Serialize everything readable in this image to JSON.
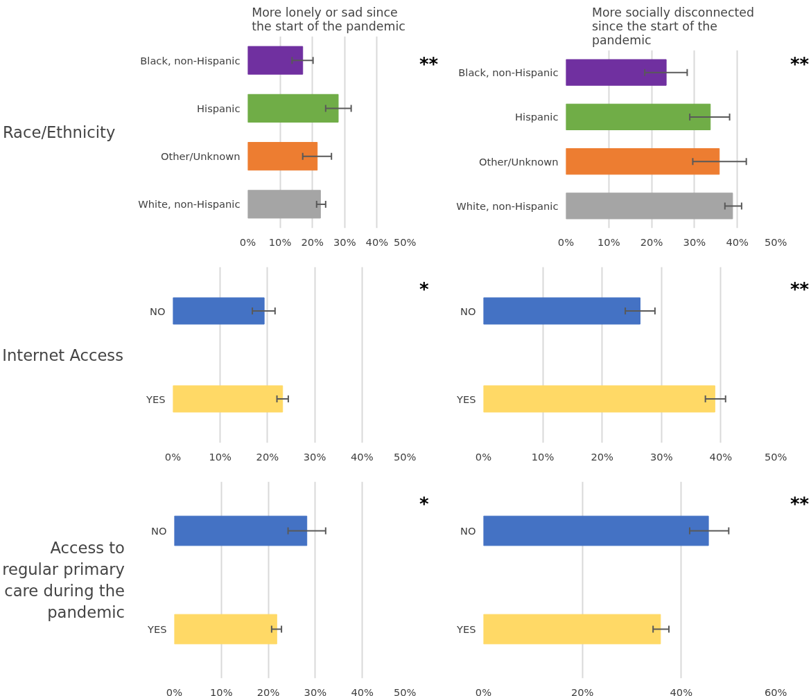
{
  "chart_data": [
    {
      "type": "bar",
      "orientation": "horizontal",
      "title": "More lonely or sad since the start of the pandemic",
      "ylabel": "Race/Ethnicity",
      "categories": [
        "Black, non-Hispanic",
        "Hispanic",
        "Other/Unknown",
        "White, non-Hispanic"
      ],
      "values": [
        17.0,
        28.0,
        21.5,
        22.5
      ],
      "colors": [
        "#7030a0",
        "#70ad47",
        "#ed7d31",
        "#a5a5a5"
      ],
      "errors": [
        [
          13.7,
          20.2
        ],
        [
          24.1,
          32.0
        ],
        [
          17.0,
          25.9
        ],
        [
          21.3,
          24.1
        ]
      ],
      "xlim": [
        0,
        50
      ],
      "xticks": [
        {
          "value": 0,
          "label": "0%"
        },
        {
          "value": 10,
          "label": "10%"
        },
        {
          "value": 20,
          "label": "20%"
        },
        {
          "value": 30,
          "label": "30%"
        },
        {
          "value": 40,
          "label": "40%"
        },
        {
          "value": 50,
          "label": "50%"
        }
      ],
      "grid": "x",
      "annotations": [
        "**"
      ]
    },
    {
      "type": "bar",
      "orientation": "horizontal",
      "title": "More socially disconnected since the start of the pandemic",
      "categories": [
        "Black, non-Hispanic",
        "Hispanic",
        "Other/Unknown",
        "White, non-Hispanic"
      ],
      "values": [
        23.4,
        33.7,
        35.8,
        38.9
      ],
      "colors": [
        "#7030a0",
        "#70ad47",
        "#ed7d31",
        "#a5a5a5"
      ],
      "errors": [
        [
          18.4,
          28.3
        ],
        [
          28.9,
          38.2
        ],
        [
          29.6,
          42.1
        ],
        [
          37.1,
          41.0
        ]
      ],
      "xlim": [
        0,
        50
      ],
      "xticks": [
        {
          "value": 0,
          "label": "0%"
        },
        {
          "value": 10,
          "label": "10%"
        },
        {
          "value": 20,
          "label": "20%"
        },
        {
          "value": 30,
          "label": "30%"
        },
        {
          "value": 40,
          "label": "40%"
        },
        {
          "value": 50,
          "label": "50%"
        }
      ],
      "grid": "x",
      "annotations": [
        "**"
      ]
    },
    {
      "type": "bar",
      "orientation": "horizontal",
      "ylabel": "Internet Access",
      "categories": [
        "NO",
        "YES"
      ],
      "values": [
        19.3,
        23.2
      ],
      "colors": [
        "#4472c4",
        "#ffd966"
      ],
      "errors": [
        [
          16.8,
          21.6
        ],
        [
          22.0,
          24.4
        ]
      ],
      "xlim": [
        0,
        50
      ],
      "xticks": [
        {
          "value": 0,
          "label": "0%"
        },
        {
          "value": 10,
          "label": "10%"
        },
        {
          "value": 20,
          "label": "20%"
        },
        {
          "value": 30,
          "label": "30%"
        },
        {
          "value": 40,
          "label": "40%"
        },
        {
          "value": 50,
          "label": "50%"
        }
      ],
      "grid": "x",
      "annotations": [
        "*"
      ]
    },
    {
      "type": "bar",
      "orientation": "horizontal",
      "categories": [
        "NO",
        "YES"
      ],
      "values": [
        26.4,
        39.0
      ],
      "colors": [
        "#4472c4",
        "#ffd966"
      ],
      "errors": [
        [
          23.9,
          28.9
        ],
        [
          37.4,
          40.8
        ]
      ],
      "xlim": [
        0,
        50
      ],
      "xticks": [
        {
          "value": 0,
          "label": "0%"
        },
        {
          "value": 10,
          "label": "10%"
        },
        {
          "value": 20,
          "label": "20%"
        },
        {
          "value": 30,
          "label": "30%"
        },
        {
          "value": 40,
          "label": "40%"
        },
        {
          "value": 50,
          "label": "50%"
        }
      ],
      "grid": "x",
      "annotations": [
        "**"
      ]
    },
    {
      "type": "bar",
      "orientation": "horizontal",
      "ylabel": "Access to regular primary care during the pandemic",
      "categories": [
        "NO",
        "YES"
      ],
      "values": [
        28.2,
        21.8
      ],
      "colors": [
        "#4472c4",
        "#ffd966"
      ],
      "errors": [
        [
          24.2,
          32.2
        ],
        [
          20.7,
          22.8
        ]
      ],
      "xlim": [
        0,
        50
      ],
      "xticks": [
        {
          "value": 0,
          "label": "0%"
        },
        {
          "value": 10,
          "label": "10%"
        },
        {
          "value": 20,
          "label": "20%"
        },
        {
          "value": 30,
          "label": "30%"
        },
        {
          "value": 40,
          "label": "40%"
        },
        {
          "value": 50,
          "label": "50%"
        }
      ],
      "grid": "x",
      "annotations": [
        "*"
      ]
    },
    {
      "type": "bar",
      "orientation": "horizontal",
      "categories": [
        "NO",
        "YES"
      ],
      "values": [
        45.5,
        35.8
      ],
      "colors": [
        "#4472c4",
        "#ffd966"
      ],
      "errors": [
        [
          41.7,
          49.6
        ],
        [
          34.3,
          37.5
        ]
      ],
      "xlim": [
        0,
        60
      ],
      "xticks": [
        {
          "value": 0,
          "label": "0%"
        },
        {
          "value": 20,
          "label": "20%"
        },
        {
          "value": 40,
          "label": "40%"
        },
        {
          "value": 60,
          "label": "60%"
        }
      ],
      "grid": "x",
      "annotations": [
        "**"
      ]
    }
  ]
}
